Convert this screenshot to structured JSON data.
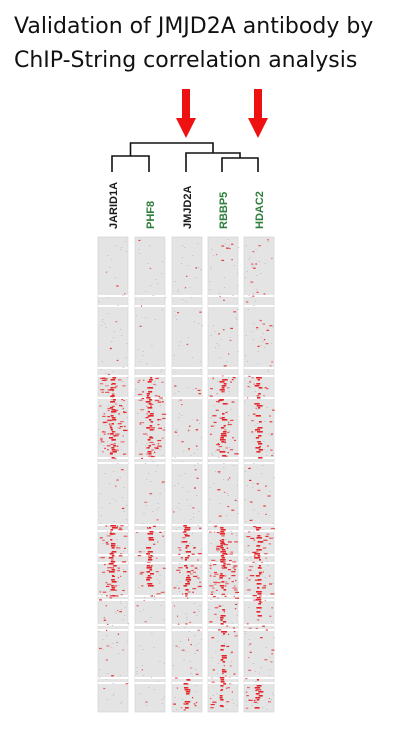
{
  "title": {
    "line1": "Validation of JMJD2A antibody by",
    "line2": "ChIP-String correlation analysis"
  },
  "colors": {
    "arrow": "#ee1111",
    "signal": "#e2262b",
    "label_black": "#1a1a1a",
    "label_green": "#2e7d3a",
    "tree": "#111111"
  },
  "samples": [
    {
      "label": "JARID1A",
      "label_color": "black",
      "highlighted": false
    },
    {
      "label": "PHF8",
      "label_color": "green",
      "highlighted": false
    },
    {
      "label": "JMJD2A",
      "label_color": "black",
      "highlighted": true
    },
    {
      "label": "RBBP5",
      "label_color": "green",
      "highlighted": false
    },
    {
      "label": "HDAC2",
      "label_color": "green",
      "highlighted": true
    }
  ]
}
